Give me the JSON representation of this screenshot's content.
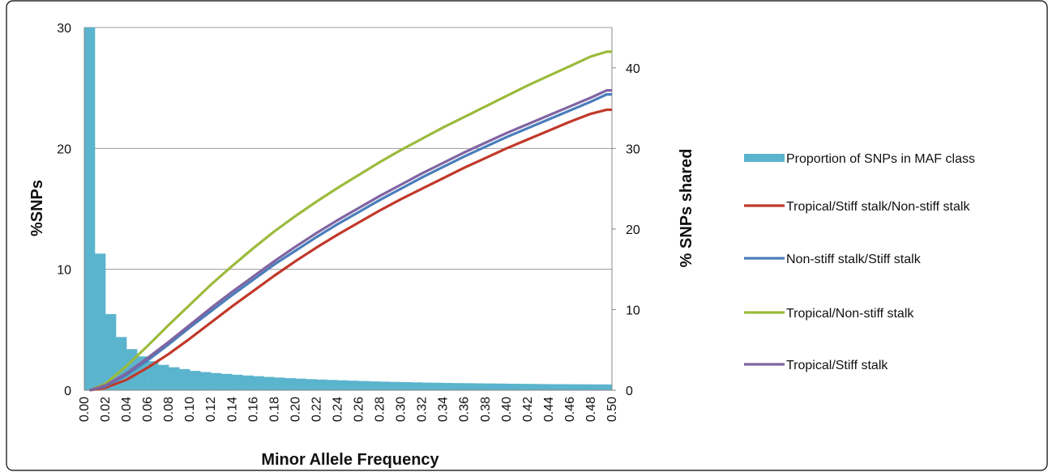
{
  "chart_data": {
    "type": "bar",
    "title": "",
    "xlabel": "Minor Allele Frequency",
    "ylabel": "%SNPs",
    "y2label": "% SNPs shared",
    "ylim": [
      0,
      30
    ],
    "y2lim": [
      0,
      45
    ],
    "yticks": [
      0,
      10,
      20,
      30
    ],
    "y2ticks": [
      0,
      10,
      20,
      30,
      40
    ],
    "categories": [
      "0.00",
      "0.02",
      "0.04",
      "0.06",
      "0.08",
      "0.10",
      "0.12",
      "0.14",
      "0.16",
      "0.18",
      "0.20",
      "0.22",
      "0.24",
      "0.26",
      "0.28",
      "0.30",
      "0.32",
      "0.34",
      "0.36",
      "0.38",
      "0.40",
      "0.42",
      "0.44",
      "0.46",
      "0.48",
      "0.50"
    ],
    "legend_position": "right",
    "grid": true,
    "bars": {
      "name": "Proportion of SNPs in MAF class",
      "axis": "left",
      "color": "#5bb4cd",
      "x": [
        0.005,
        0.015,
        0.025,
        0.035,
        0.045,
        0.055,
        0.065,
        0.075,
        0.085,
        0.095,
        0.105,
        0.115,
        0.125,
        0.135,
        0.145,
        0.155,
        0.165,
        0.175,
        0.185,
        0.195,
        0.205,
        0.215,
        0.225,
        0.235,
        0.245,
        0.255,
        0.265,
        0.275,
        0.285,
        0.295,
        0.305,
        0.315,
        0.325,
        0.335,
        0.345,
        0.355,
        0.365,
        0.375,
        0.385,
        0.395,
        0.405,
        0.415,
        0.425,
        0.435,
        0.445,
        0.455,
        0.465,
        0.475,
        0.485,
        0.495
      ],
      "values": [
        30,
        11.3,
        6.3,
        4.4,
        3.4,
        2.8,
        2.4,
        2.1,
        1.9,
        1.75,
        1.6,
        1.5,
        1.42,
        1.35,
        1.28,
        1.22,
        1.16,
        1.1,
        1.05,
        1.0,
        0.96,
        0.92,
        0.88,
        0.85,
        0.82,
        0.79,
        0.76,
        0.73,
        0.71,
        0.69,
        0.67,
        0.65,
        0.63,
        0.62,
        0.6,
        0.59,
        0.58,
        0.57,
        0.56,
        0.55,
        0.54,
        0.53,
        0.52,
        0.51,
        0.5,
        0.5,
        0.49,
        0.49,
        0.48,
        0.48
      ]
    },
    "series": [
      {
        "name": "Tropical/Stiff stalk/Non-stiff stalk",
        "axis": "right",
        "color": "#c0392b",
        "x": [
          0.005,
          0.02,
          0.04,
          0.06,
          0.08,
          0.1,
          0.12,
          0.14,
          0.16,
          0.18,
          0.2,
          0.22,
          0.24,
          0.26,
          0.28,
          0.3,
          0.32,
          0.34,
          0.36,
          0.38,
          0.4,
          0.42,
          0.44,
          0.46,
          0.48,
          0.495,
          0.5
        ],
        "values": [
          0,
          0.3,
          1.3,
          2.8,
          4.5,
          6.4,
          8.4,
          10.4,
          12.3,
          14.2,
          16.0,
          17.7,
          19.3,
          20.8,
          22.3,
          23.7,
          25.0,
          26.3,
          27.6,
          28.8,
          30.0,
          31.1,
          32.2,
          33.3,
          34.3,
          34.8,
          34.8
        ]
      },
      {
        "name": "Non-stiff stalk/Stiff stalk",
        "axis": "right",
        "color": "#4a7ebb",
        "x": [
          0.005,
          0.02,
          0.04,
          0.06,
          0.08,
          0.1,
          0.12,
          0.14,
          0.16,
          0.18,
          0.2,
          0.22,
          0.24,
          0.26,
          0.28,
          0.3,
          0.32,
          0.34,
          0.36,
          0.38,
          0.4,
          0.42,
          0.44,
          0.46,
          0.48,
          0.495,
          0.5
        ],
        "values": [
          0,
          0.5,
          1.9,
          3.7,
          5.7,
          7.8,
          9.8,
          11.8,
          13.7,
          15.6,
          17.3,
          19.0,
          20.6,
          22.1,
          23.6,
          25.0,
          26.4,
          27.7,
          29.0,
          30.2,
          31.4,
          32.5,
          33.6,
          34.7,
          35.8,
          36.7,
          36.7
        ]
      },
      {
        "name": "Tropical/Non-stiff stalk",
        "axis": "right",
        "color": "#9bbb3c",
        "x": [
          0.005,
          0.02,
          0.04,
          0.06,
          0.08,
          0.1,
          0.12,
          0.14,
          0.16,
          0.18,
          0.2,
          0.22,
          0.24,
          0.26,
          0.28,
          0.3,
          0.32,
          0.34,
          0.36,
          0.38,
          0.4,
          0.42,
          0.44,
          0.46,
          0.48,
          0.495,
          0.5
        ],
        "values": [
          0,
          0.8,
          3.0,
          5.5,
          8.1,
          10.6,
          13.1,
          15.4,
          17.6,
          19.7,
          21.6,
          23.4,
          25.1,
          26.7,
          28.3,
          29.8,
          31.2,
          32.6,
          33.9,
          35.2,
          36.5,
          37.8,
          39.0,
          40.2,
          41.4,
          42.0,
          42.0
        ]
      },
      {
        "name": "Tropical/Stiff stalk",
        "axis": "right",
        "color": "#8064a2",
        "x": [
          0.005,
          0.02,
          0.04,
          0.06,
          0.08,
          0.1,
          0.12,
          0.14,
          0.16,
          0.18,
          0.2,
          0.22,
          0.24,
          0.26,
          0.28,
          0.3,
          0.32,
          0.34,
          0.36,
          0.38,
          0.4,
          0.42,
          0.44,
          0.46,
          0.48,
          0.495,
          0.5
        ],
        "values": [
          0,
          0.6,
          2.1,
          4.0,
          6.0,
          8.1,
          10.2,
          12.2,
          14.1,
          16.0,
          17.8,
          19.5,
          21.1,
          22.6,
          24.1,
          25.5,
          26.9,
          28.2,
          29.5,
          30.7,
          31.9,
          33.0,
          34.1,
          35.2,
          36.3,
          37.2,
          37.2
        ]
      }
    ]
  }
}
